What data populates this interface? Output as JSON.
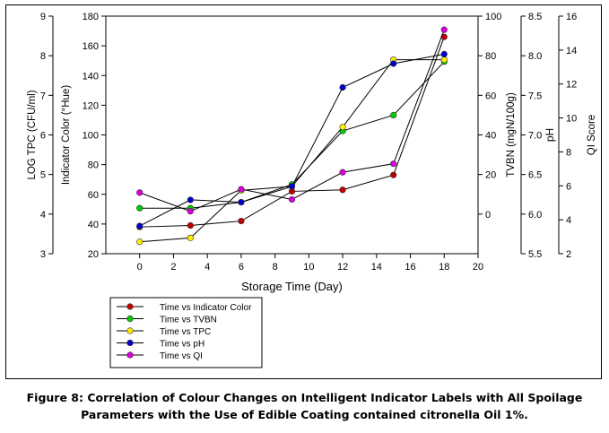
{
  "chart_data": {
    "type": "line",
    "xlabel": "Storage Time (Day)",
    "x_ticks": [
      "0",
      "2",
      "4",
      "6",
      "8",
      "10",
      "12",
      "14",
      "16",
      "18",
      "20"
    ],
    "xlim": [
      -2,
      20
    ],
    "axes": [
      {
        "key": "ltpc",
        "label": "LOG TPC (CFU/ml)",
        "side": "left",
        "ticks": [
          "3",
          "4",
          "5",
          "6",
          "7",
          "8",
          "9"
        ],
        "lim": [
          3,
          9
        ]
      },
      {
        "key": "hue",
        "label": "Indicator Color (°Hue)",
        "side": "left",
        "ticks": [
          "20",
          "40",
          "60",
          "80",
          "100",
          "120",
          "140",
          "160",
          "180"
        ],
        "lim": [
          20,
          180
        ]
      },
      {
        "key": "tvbn",
        "label": "TVBN (mgN/100g)",
        "side": "right",
        "ticks": [
          "0",
          "20",
          "40",
          "60",
          "80",
          "100"
        ],
        "lim": [
          -20,
          100
        ]
      },
      {
        "key": "ph",
        "label": "pH",
        "side": "right",
        "ticks": [
          "5.5",
          "6.0",
          "6.5",
          "7.0",
          "7.5",
          "8.0",
          "8.5"
        ],
        "lim": [
          5.5,
          8.5
        ]
      },
      {
        "key": "qi",
        "label": "QI Score",
        "side": "right",
        "ticks": [
          "2",
          "4",
          "6",
          "8",
          "10",
          "12",
          "14",
          "16"
        ],
        "lim": [
          2,
          16
        ]
      }
    ],
    "x": [
      0,
      3,
      6,
      9,
      12,
      15,
      18
    ],
    "series": [
      {
        "name": "Time vs Indicator Color",
        "axis": "hue",
        "color": "#c00000",
        "values": [
          38,
          39,
          42,
          62,
          63,
          73,
          166
        ]
      },
      {
        "name": "Time vs TVBN",
        "axis": "tvbn",
        "color": "#00cc00",
        "values": [
          3,
          3,
          6,
          15,
          42,
          50,
          77
        ]
      },
      {
        "name": "Time vs TPC",
        "axis": "ltpc",
        "color": "#ffee00",
        "values": [
          3.3,
          3.4,
          4.6,
          4.7,
          6.2,
          7.9,
          7.9
        ]
      },
      {
        "name": "Time vs pH",
        "axis": "ph",
        "color": "#0000cc",
        "values": [
          5.85,
          6.18,
          6.15,
          6.35,
          7.6,
          7.9,
          8.02
        ]
      },
      {
        "name": "Time vs QI",
        "axis": "qi",
        "color": "#dd00dd",
        "values": [
          5.6,
          4.5,
          5.8,
          5.2,
          6.8,
          7.3,
          15.2
        ]
      }
    ],
    "legend_position": "bottom-left",
    "grid": false
  },
  "caption": {
    "line1": "Figure 8: Correlation of Colour Changes on Intelligent Indicator Labels with All Spoilage",
    "line2": "Parameters with the Use of Edible Coating contained citronella Oil 1%."
  }
}
